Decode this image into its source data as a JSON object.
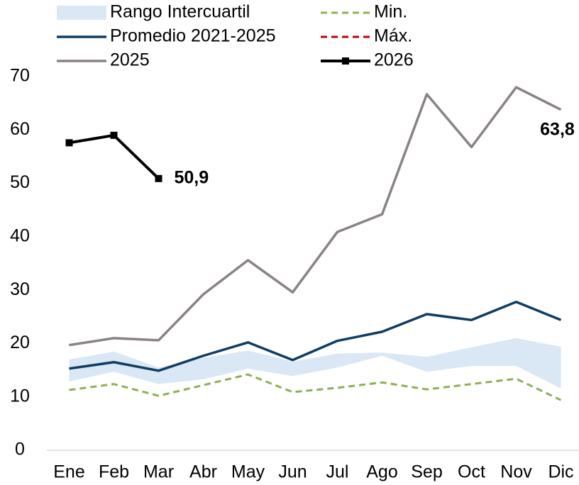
{
  "chart_data": {
    "type": "line",
    "categories": [
      "Ene",
      "Feb",
      "Mar",
      "Abr",
      "May",
      "Jun",
      "Jul",
      "Ago",
      "Sep",
      "Oct",
      "Nov",
      "Dic"
    ],
    "ylim": [
      0,
      70
    ],
    "yticks": [
      0,
      10,
      20,
      30,
      40,
      50,
      60,
      70
    ],
    "series": [
      {
        "name": "Rango Intercuartil",
        "color": "#dae7f5",
        "style": "band",
        "low": [
          12.9,
          14.7,
          12.4,
          13.3,
          15.3,
          13.9,
          15.5,
          17.7,
          14.7,
          15.8,
          15.8,
          11.6
        ],
        "high": [
          17.0,
          18.5,
          15.5,
          17.3,
          18.7,
          16.6,
          18.1,
          18.3,
          17.5,
          19.3,
          21.0,
          19.4
        ]
      },
      {
        "name": "Min.",
        "color": "#8db055",
        "style": "dash",
        "values": [
          11.3,
          12.4,
          10.2,
          12.2,
          14.2,
          10.9,
          11.7,
          12.7,
          11.4,
          12.4,
          13.4,
          9.4
        ]
      },
      {
        "name": "Promedio 2021-2025",
        "color": "#0f3d63",
        "style": "line",
        "values": [
          15.3,
          16.5,
          14.9,
          17.7,
          20.2,
          16.9,
          20.5,
          22.2,
          25.5,
          24.4,
          27.8,
          24.4
        ]
      },
      {
        "name": "Máx.",
        "color": "#c00000",
        "style": "dash",
        "values": [
          19.7,
          21.0,
          20.6,
          29.2,
          35.6,
          29.6,
          40.9,
          44.2,
          66.7,
          56.8,
          68.0,
          63.8
        ]
      },
      {
        "name": "2025",
        "color": "#8a8384",
        "style": "line",
        "values": [
          19.7,
          21.0,
          20.6,
          29.2,
          35.6,
          29.6,
          40.9,
          44.2,
          66.7,
          56.8,
          68.0,
          63.8
        ],
        "value_labels": [
          null,
          null,
          null,
          null,
          null,
          null,
          null,
          null,
          null,
          null,
          null,
          "63,8"
        ]
      },
      {
        "name": "2026",
        "color": "#000000",
        "style": "marker",
        "values": [
          57.6,
          59.0,
          50.9,
          null,
          null,
          null,
          null,
          null,
          null,
          null,
          null,
          null
        ],
        "value_labels": [
          null,
          null,
          "50,9",
          null,
          null,
          null,
          null,
          null,
          null,
          null,
          null,
          null
        ]
      }
    ]
  }
}
